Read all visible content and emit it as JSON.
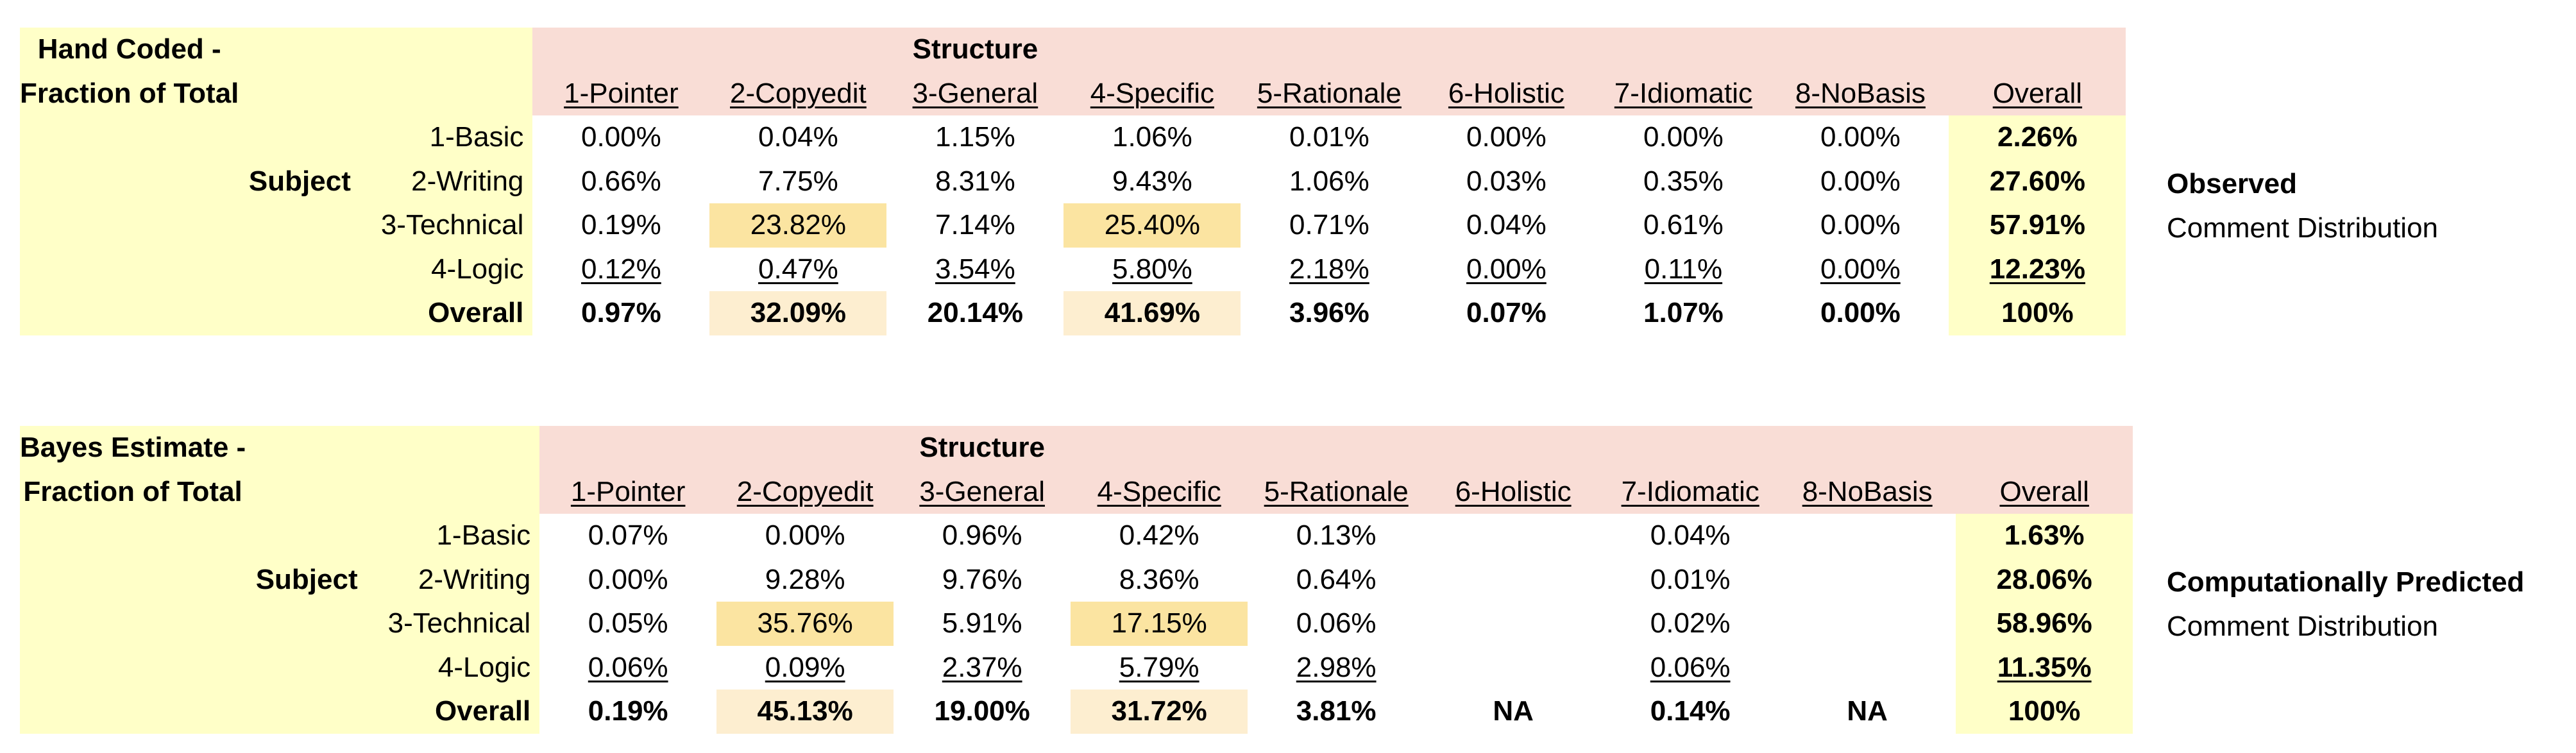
{
  "tables": [
    {
      "title_line1": "Hand Coded -",
      "title_line2": "Fraction of Total",
      "structure_label": "Structure",
      "subject_label": "Subject",
      "columns": [
        "1-Pointer",
        "2-Copyedit",
        "3-General",
        "4-Specific",
        "5-Rationale",
        "6-Holistic",
        "7-Idiomatic",
        "8-NoBasis",
        "Overall"
      ],
      "rows": [
        {
          "label": "1-Basic",
          "values": [
            "0.00%",
            "0.04%",
            "1.15%",
            "1.06%",
            "0.01%",
            "0.00%",
            "0.00%",
            "0.00%",
            "2.26%"
          ]
        },
        {
          "label": "2-Writing",
          "values": [
            "0.66%",
            "7.75%",
            "8.31%",
            "9.43%",
            "1.06%",
            "0.03%",
            "0.35%",
            "0.00%",
            "27.60%"
          ]
        },
        {
          "label": "3-Technical",
          "values": [
            "0.19%",
            "23.82%",
            "7.14%",
            "25.40%",
            "0.71%",
            "0.04%",
            "0.61%",
            "0.00%",
            "57.91%"
          ]
        },
        {
          "label": "4-Logic",
          "values": [
            "0.12%",
            "0.47%",
            "3.54%",
            "5.80%",
            "2.18%",
            "0.00%",
            "0.11%",
            "0.00%",
            "12.23%"
          ]
        },
        {
          "label": "Overall",
          "values": [
            "0.97%",
            "32.09%",
            "20.14%",
            "41.69%",
            "3.96%",
            "0.07%",
            "1.07%",
            "0.00%",
            "100%"
          ]
        }
      ],
      "side_line1": "Observed",
      "side_line2": "Comment Distribution"
    },
    {
      "title_line1": "Bayes Estimate -",
      "title_line2": "Fraction of Total",
      "structure_label": "Structure",
      "subject_label": "Subject",
      "columns": [
        "1-Pointer",
        "2-Copyedit",
        "3-General",
        "4-Specific",
        "5-Rationale",
        "6-Holistic",
        "7-Idiomatic",
        "8-NoBasis",
        "Overall"
      ],
      "rows": [
        {
          "label": "1-Basic",
          "values": [
            "0.07%",
            "0.00%",
            "0.96%",
            "0.42%",
            "0.13%",
            "",
            "0.04%",
            "",
            "1.63%"
          ]
        },
        {
          "label": "2-Writing",
          "values": [
            "0.00%",
            "9.28%",
            "9.76%",
            "8.36%",
            "0.64%",
            "",
            "0.01%",
            "",
            "28.06%"
          ]
        },
        {
          "label": "3-Technical",
          "values": [
            "0.05%",
            "35.76%",
            "5.91%",
            "17.15%",
            "0.06%",
            "",
            "0.02%",
            "",
            "58.96%"
          ]
        },
        {
          "label": "4-Logic",
          "values": [
            "0.06%",
            "0.09%",
            "2.37%",
            "5.79%",
            "2.98%",
            "",
            "0.06%",
            "",
            "11.35%"
          ]
        },
        {
          "label": "Overall",
          "values": [
            "0.19%",
            "45.13%",
            "19.00%",
            "31.72%",
            "3.81%",
            "NA",
            "0.14%",
            "NA",
            "100%"
          ]
        }
      ],
      "side_line1": "Computationally Predicted",
      "side_line2": "Comment Distribution"
    }
  ],
  "colors": {
    "label_bg": "#ffffc8",
    "header_bg": "#f9ddd6",
    "highlight_strong": "#fbe4a1",
    "highlight_light": "#fdeed0"
  }
}
